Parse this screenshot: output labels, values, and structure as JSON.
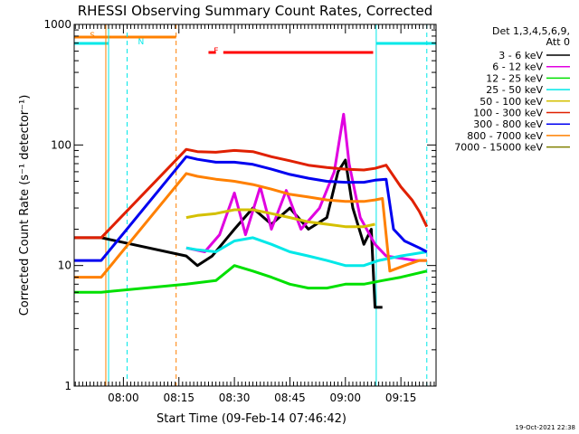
{
  "title": "RHESSI Observing Summary Count Rates, Corrected",
  "footer_stamp": "19-Oct-2021 22:38",
  "legend_header": [
    "Det 1,3,4,5,6,9,",
    "Att 0"
  ],
  "colors": {
    "3 - 6 keV": "#000000",
    "6 - 12 keV": "#e000e0",
    "12 - 25 keV": "#00e000",
    "25 - 50 keV": "#00e8e8",
    "50 - 100 keV": "#d4c000",
    "100 - 300 keV": "#e02000",
    "300 - 800 keV": "#0000f0",
    "800 - 7000 keV": "#ff8000",
    "7000 - 15000 keV": "#808000",
    "flag_S": "#ff8000",
    "flag_N": "#00e8e8",
    "flag_F": "#ff0000"
  },
  "chart_data": {
    "type": "line",
    "title": "RHESSI Observing Summary Count Rates, Corrected",
    "xlabel": "Start Time (09-Feb-14 07:46:42)",
    "ylabel": "Corrected Count Rate (s⁻¹ detector⁻¹)",
    "y_scale": "log",
    "xlim": [
      "07:46:42",
      "09:24:30"
    ],
    "ylim": [
      1,
      1000
    ],
    "x_ticks": [
      "08:00",
      "08:15",
      "08:30",
      "08:45",
      "09:00",
      "09:15"
    ],
    "y_ticks": [
      "1",
      "10",
      "100",
      "1000"
    ],
    "legend": "top-right",
    "series": [
      {
        "name": "3 - 6 keV",
        "points": [
          [
            "07:46:42",
            17
          ],
          [
            "07:54:00",
            17
          ],
          [
            "08:17:00",
            12
          ],
          [
            "08:20:00",
            10
          ],
          [
            "08:24:00",
            12
          ],
          [
            "08:30:00",
            20
          ],
          [
            "08:35:00",
            30
          ],
          [
            "08:40:00",
            22
          ],
          [
            "08:45:00",
            30
          ],
          [
            "08:50:00",
            20
          ],
          [
            "08:55:00",
            25
          ],
          [
            "08:58:00",
            60
          ],
          [
            "09:00:00",
            75
          ],
          [
            "09:02:00",
            30
          ],
          [
            "09:05:00",
            15
          ],
          [
            "09:07:00",
            20
          ],
          [
            "09:08:00",
            4.5
          ],
          [
            "09:10:00",
            4.5
          ]
        ]
      },
      {
        "name": "6 - 12 keV",
        "points": [
          [
            "08:17:00",
            14
          ],
          [
            "08:22:00",
            13
          ],
          [
            "08:26:00",
            18
          ],
          [
            "08:30:00",
            40
          ],
          [
            "08:33:00",
            18
          ],
          [
            "08:37:00",
            45
          ],
          [
            "08:40:00",
            20
          ],
          [
            "08:44:00",
            42
          ],
          [
            "08:48:00",
            20
          ],
          [
            "08:53:00",
            30
          ],
          [
            "08:57:00",
            60
          ],
          [
            "08:59:30",
            180
          ],
          [
            "09:01:00",
            70
          ],
          [
            "09:04:00",
            25
          ],
          [
            "09:08:00",
            15
          ],
          [
            "09:11:00",
            12
          ],
          [
            "09:19:00",
            11
          ],
          [
            "09:22:00",
            11
          ]
        ]
      },
      {
        "name": "12 - 25 keV",
        "points": [
          [
            "07:46:42",
            6
          ],
          [
            "07:54:00",
            6
          ],
          [
            "08:17:00",
            7
          ],
          [
            "08:25:00",
            7.5
          ],
          [
            "08:30:00",
            10
          ],
          [
            "08:35:00",
            9
          ],
          [
            "08:40:00",
            8
          ],
          [
            "08:45:00",
            7
          ],
          [
            "08:50:00",
            6.5
          ],
          [
            "08:55:00",
            6.5
          ],
          [
            "09:00:00",
            7
          ],
          [
            "09:05:00",
            7
          ],
          [
            "09:10:00",
            7.5
          ],
          [
            "09:15:00",
            8
          ],
          [
            "09:22:00",
            9
          ]
        ]
      },
      {
        "name": "25 - 50 keV",
        "points": [
          [
            "08:17:00",
            14
          ],
          [
            "08:20:00",
            13.5
          ],
          [
            "08:25:00",
            13
          ],
          [
            "08:30:00",
            16
          ],
          [
            "08:35:00",
            17
          ],
          [
            "08:40:00",
            15
          ],
          [
            "08:45:00",
            13
          ],
          [
            "08:50:00",
            12
          ],
          [
            "08:55:00",
            11
          ],
          [
            "09:00:00",
            10
          ],
          [
            "09:05:00",
            10
          ],
          [
            "09:09:00",
            11
          ],
          [
            "09:15:00",
            12
          ],
          [
            "09:22:00",
            13
          ]
        ]
      },
      {
        "name": "50 - 100 keV",
        "points": [
          [
            "08:17:00",
            25
          ],
          [
            "08:20:00",
            26
          ],
          [
            "08:25:00",
            27
          ],
          [
            "08:30:00",
            29
          ],
          [
            "08:35:00",
            29
          ],
          [
            "08:40:00",
            27
          ],
          [
            "08:45:00",
            25
          ],
          [
            "08:50:00",
            23
          ],
          [
            "08:55:00",
            22
          ],
          [
            "09:00:00",
            21
          ],
          [
            "09:05:00",
            21
          ],
          [
            "09:08:00",
            22
          ]
        ]
      },
      {
        "name": "100 - 300 keV",
        "points": [
          [
            "07:46:42",
            17
          ],
          [
            "07:54:00",
            17
          ],
          [
            "08:17:00",
            92
          ],
          [
            "08:20:00",
            88
          ],
          [
            "08:25:00",
            87
          ],
          [
            "08:30:00",
            90
          ],
          [
            "08:35:00",
            88
          ],
          [
            "08:40:00",
            80
          ],
          [
            "08:45:00",
            74
          ],
          [
            "08:50:00",
            68
          ],
          [
            "08:55:00",
            65
          ],
          [
            "09:00:00",
            63
          ],
          [
            "09:05:00",
            62
          ],
          [
            "09:08:00",
            64
          ],
          [
            "09:11:00",
            68
          ],
          [
            "09:15:00",
            45
          ],
          [
            "09:18:00",
            35
          ],
          [
            "09:20:00",
            28
          ],
          [
            "09:22:00",
            21
          ]
        ]
      },
      {
        "name": "300 - 800 keV",
        "points": [
          [
            "07:46:42",
            11
          ],
          [
            "07:54:00",
            11
          ],
          [
            "08:17:00",
            80
          ],
          [
            "08:20:00",
            76
          ],
          [
            "08:25:00",
            72
          ],
          [
            "08:30:00",
            72
          ],
          [
            "08:35:00",
            69
          ],
          [
            "08:40:00",
            63
          ],
          [
            "08:45:00",
            57
          ],
          [
            "08:50:00",
            53
          ],
          [
            "08:55:00",
            50
          ],
          [
            "09:00:00",
            49
          ],
          [
            "09:05:00",
            49
          ],
          [
            "09:08:00",
            51
          ],
          [
            "09:11:00",
            52
          ],
          [
            "09:13:00",
            20
          ],
          [
            "09:16:00",
            16
          ],
          [
            "09:20:00",
            14
          ],
          [
            "09:22:00",
            13
          ]
        ]
      },
      {
        "name": "800 - 7000 keV",
        "points": [
          [
            "07:46:42",
            8
          ],
          [
            "07:54:00",
            8
          ],
          [
            "08:17:00",
            58
          ],
          [
            "08:20:00",
            55
          ],
          [
            "08:25:00",
            52
          ],
          [
            "08:30:00",
            50
          ],
          [
            "08:35:00",
            47
          ],
          [
            "08:40:00",
            43
          ],
          [
            "08:45:00",
            39
          ],
          [
            "08:50:00",
            37
          ],
          [
            "08:55:00",
            35
          ],
          [
            "09:00:00",
            34
          ],
          [
            "09:05:00",
            34
          ],
          [
            "09:08:00",
            35
          ],
          [
            "09:10:00",
            36
          ],
          [
            "09:12:00",
            9
          ],
          [
            "09:16:00",
            10
          ],
          [
            "09:20:00",
            11
          ],
          [
            "09:22:00",
            11
          ]
        ]
      },
      {
        "name": "7000 - 15000 keV",
        "points": []
      }
    ],
    "bars": [
      {
        "label": "S",
        "start": "07:46:42",
        "end": "08:14:15",
        "color": "flag_S"
      },
      {
        "label": "N",
        "start": "07:46:42",
        "end": "07:56:00",
        "color": "flag_N"
      },
      {
        "label": "N",
        "start": "09:08:20",
        "end": "09:24:30",
        "color": "flag_N"
      },
      {
        "label": "F",
        "start": "08:23:00",
        "end": "08:25:00",
        "color": "flag_F"
      },
      {
        "label": "F",
        "start": "08:27:00",
        "end": "09:07:30",
        "color": "flag_F"
      }
    ],
    "vlines": [
      {
        "time": "07:55:15",
        "color": "flag_S",
        "dashed": false
      },
      {
        "time": "07:56:00",
        "color": "flag_N",
        "dashed": false
      },
      {
        "time": "08:01:00",
        "color": "flag_N",
        "dashed": true
      },
      {
        "time": "08:14:15",
        "color": "flag_S",
        "dashed": true
      },
      {
        "time": "09:08:20",
        "color": "flag_N",
        "dashed": false
      },
      {
        "time": "09:22:00",
        "color": "flag_N",
        "dashed": true
      }
    ]
  }
}
